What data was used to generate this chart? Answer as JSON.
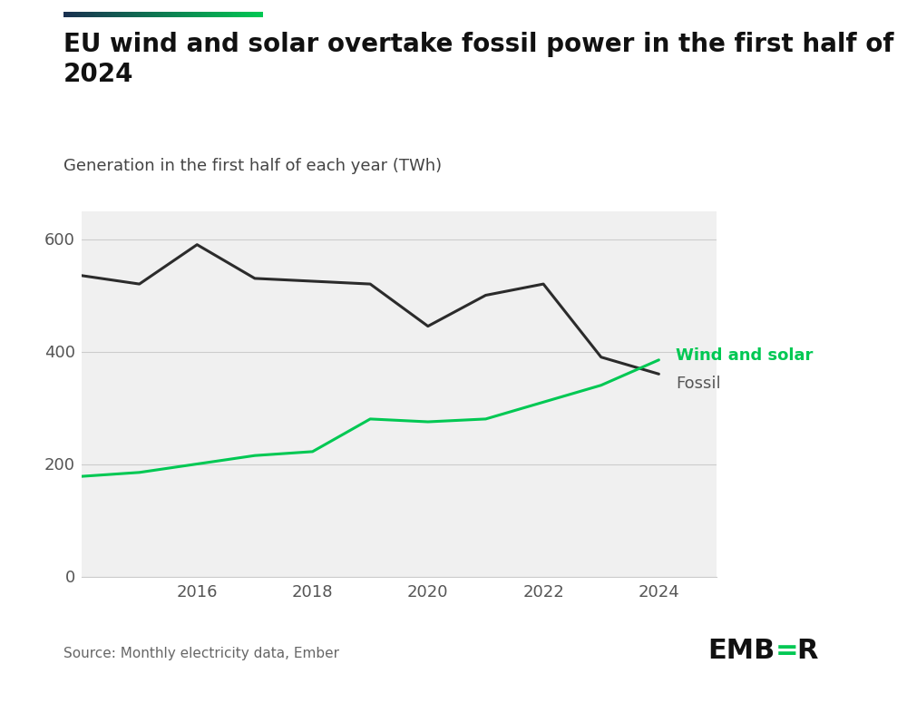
{
  "title": "EU wind and solar overtake fossil power in the first half of\n2024",
  "subtitle": "Generation in the first half of each year (TWh)",
  "source": "Source: Monthly electricity data, Ember",
  "fossil_years": [
    2014,
    2015,
    2016,
    2017,
    2018,
    2019,
    2020,
    2021,
    2022,
    2023,
    2024
  ],
  "fossil": [
    535,
    520,
    590,
    530,
    525,
    520,
    445,
    500,
    520,
    390,
    360
  ],
  "wind_solar_years": [
    2014,
    2015,
    2016,
    2017,
    2018,
    2019,
    2020,
    2021,
    2022,
    2023,
    2024
  ],
  "wind_solar": [
    178,
    185,
    200,
    215,
    222,
    280,
    275,
    280,
    310,
    340,
    385
  ],
  "fossil_color": "#2b2b2b",
  "wind_solar_color": "#00c853",
  "fossil_label_color": "#555555",
  "background_color": "#ffffff",
  "plot_bg_color": "#f0f0f0",
  "line_width": 2.2,
  "ylim": [
    0,
    650
  ],
  "yticks": [
    0,
    200,
    400,
    600
  ],
  "xlim": [
    2014,
    2025
  ],
  "xticks": [
    2016,
    2018,
    2020,
    2022,
    2024
  ],
  "grid_color": "#cccccc",
  "title_fontsize": 20,
  "subtitle_fontsize": 13,
  "tick_fontsize": 13,
  "label_fontsize": 13,
  "source_fontsize": 11,
  "ember_fontsize": 22,
  "accent_color1": "#1a3050",
  "accent_color2": "#00c853"
}
